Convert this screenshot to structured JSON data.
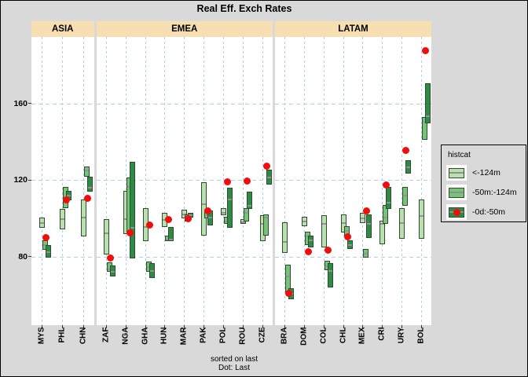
{
  "title": "Real Eff. Exch Rates",
  "caption": {
    "line1": "sorted on last",
    "line2": "Dot: Last"
  },
  "legend": {
    "title": "histcat",
    "items": [
      {
        "label": "<-124m",
        "type": "light"
      },
      {
        "label": "-50m:-124m",
        "type": "mid"
      },
      {
        "label": "-0d:-50m",
        "type": "dark-dot"
      }
    ]
  },
  "colors": {
    "page_bg": "#d9d9d9",
    "panel_bg": "#ffffff",
    "strip_bg": "#f8dfb2",
    "grid": "#abd2e6",
    "light_green": "#b9e0ae",
    "mid_green": "#77c378",
    "dark_green": "#2e8b45",
    "last_dot_red": "#f20d0d",
    "bar_border": "#2e4b2e",
    "median_gray": "#949494"
  },
  "chart_data": {
    "type": "range-bar",
    "title": "Real Eff. Exch Rates",
    "xlabel": "",
    "ylabel": "",
    "yticks": [
      80,
      120,
      160
    ],
    "ylim": [
      44,
      195
    ],
    "grid": true,
    "legend_position": "right",
    "series_legend": [
      "<-124m",
      "-50m:-124m",
      "-0d:-50m"
    ],
    "note": "each country: [low, high, median] per history window, plus last value dot",
    "panels": [
      {
        "name": "ASIA",
        "countries": [
          {
            "code": "MYS",
            "light": [
              95,
              100.5,
              98
            ],
            "mid": [
              83.5,
              88.5,
              86.5
            ],
            "dark": [
              79.5,
              86,
              83
            ],
            "last": 90
          },
          {
            "code": "PHL",
            "light": [
              94.5,
              105,
              100
            ],
            "mid": [
              105.5,
              116.5,
              111
            ],
            "dark": [
              109.5,
              114.5,
              112.5
            ],
            "last": 109.5
          },
          {
            "code": "CHN",
            "light": [
              90.5,
              110,
              101
            ],
            "mid": [
              122,
              127,
              125.5
            ],
            "dark": [
              114,
              122,
              116.5
            ],
            "last": 110.5
          }
        ]
      },
      {
        "name": "EMEA",
        "countries": [
          {
            "code": "ZAF",
            "light": [
              81,
              99.5,
              92.5
            ],
            "mid": [
              72,
              77,
              74
            ],
            "dark": [
              69.5,
              75.5,
              72.5
            ],
            "last": 79.5
          },
          {
            "code": "NGA",
            "light": [
              92,
              114.5,
              100
            ],
            "mid": [
              92,
              121.5,
              117
            ],
            "dark": [
              79,
              129.5,
              95.5
            ],
            "last": 92.5
          },
          {
            "code": "GHA",
            "light": [
              88,
              105.5,
              96
            ],
            "mid": [
              72,
              77.5,
              75
            ],
            "dark": [
              69,
              76.5,
              73
            ],
            "last": 96.5
          },
          {
            "code": "HUN",
            "light": [
              95.5,
              103,
              99.5
            ],
            "mid": [
              88,
              91,
              89.5
            ],
            "dark": [
              88,
              95.5,
              89.5
            ],
            "last": 99.5
          },
          {
            "code": "MAR",
            "light": [
              100,
              104.5,
              102.5
            ],
            "mid": [
              98.5,
              102,
              100.5
            ],
            "dark": [
              100.5,
              103,
              102
            ],
            "last": 100
          },
          {
            "code": "PAK",
            "light": [
              91,
              119,
              108
            ],
            "mid": [
              100,
              104.5,
              102
            ],
            "dark": [
              96.5,
              104,
              101
            ],
            "last": 104
          },
          {
            "code": "POL",
            "light": [
              101.5,
              105.5,
              103.5
            ],
            "mid": [
              97,
              101,
              99
            ],
            "dark": [
              95,
              116,
              110.5
            ],
            "last": 119
          },
          {
            "code": "ROU",
            "light": [
              97,
              99.5,
              98.5
            ],
            "mid": [
              98.5,
              105.5,
              103.5
            ],
            "dark": [
              105,
              114,
              107
            ],
            "last": 119.5
          },
          {
            "code": "CZE",
            "light": [
              88,
              101.5,
              97.5
            ],
            "mid": [
              91,
              102,
              101
            ],
            "dark": [
              117.5,
              125.5,
              122
            ],
            "last": 127.5
          }
        ]
      },
      {
        "name": "LATAM",
        "countries": [
          {
            "code": "BRA",
            "light": [
              82,
              98,
              88
            ],
            "mid": [
              61.5,
              76,
              70
            ],
            "dark": [
              58,
              63.5,
              61
            ],
            "last": 61
          },
          {
            "code": "DOM",
            "light": [
              96,
              101,
              99
            ],
            "mid": [
              86,
              93,
              91
            ],
            "dark": [
              85,
              91,
              89
            ],
            "last": 82.5
          },
          {
            "code": "COL",
            "light": [
              85,
              101.5,
              97.5
            ],
            "mid": [
              73,
              78,
              75.5
            ],
            "dark": [
              64,
              76.5,
              73
            ],
            "last": 83.5
          },
          {
            "code": "CHL",
            "light": [
              92.5,
              102,
              98
            ],
            "mid": [
              91,
              96,
              94
            ],
            "dark": [
              84,
              88.5,
              86.5
            ],
            "last": 90.5
          },
          {
            "code": "MEX",
            "light": [
              97.5,
              103,
              100.5
            ],
            "mid": [
              79.5,
              84,
              82
            ],
            "dark": [
              90,
              102,
              97.5
            ],
            "last": 104
          },
          {
            "code": "CRI",
            "light": [
              86.5,
              99,
              97.5
            ],
            "mid": [
              97,
              107,
              101
            ],
            "dark": [
              105,
              116.5,
              108.5
            ],
            "last": 117.5
          },
          {
            "code": "URY",
            "light": [
              89.5,
              105.5,
              98
            ],
            "mid": [
              106.5,
              116.5,
              112.5
            ],
            "dark": [
              123.5,
              130.5,
              127
            ],
            "last": 135.5
          },
          {
            "code": "BOL",
            "light": [
              89.5,
              110,
              101.5
            ],
            "mid": [
              141,
              153,
              151
            ],
            "dark": [
              149.5,
              170.5,
              154
            ],
            "last": 187.5
          }
        ]
      }
    ]
  }
}
